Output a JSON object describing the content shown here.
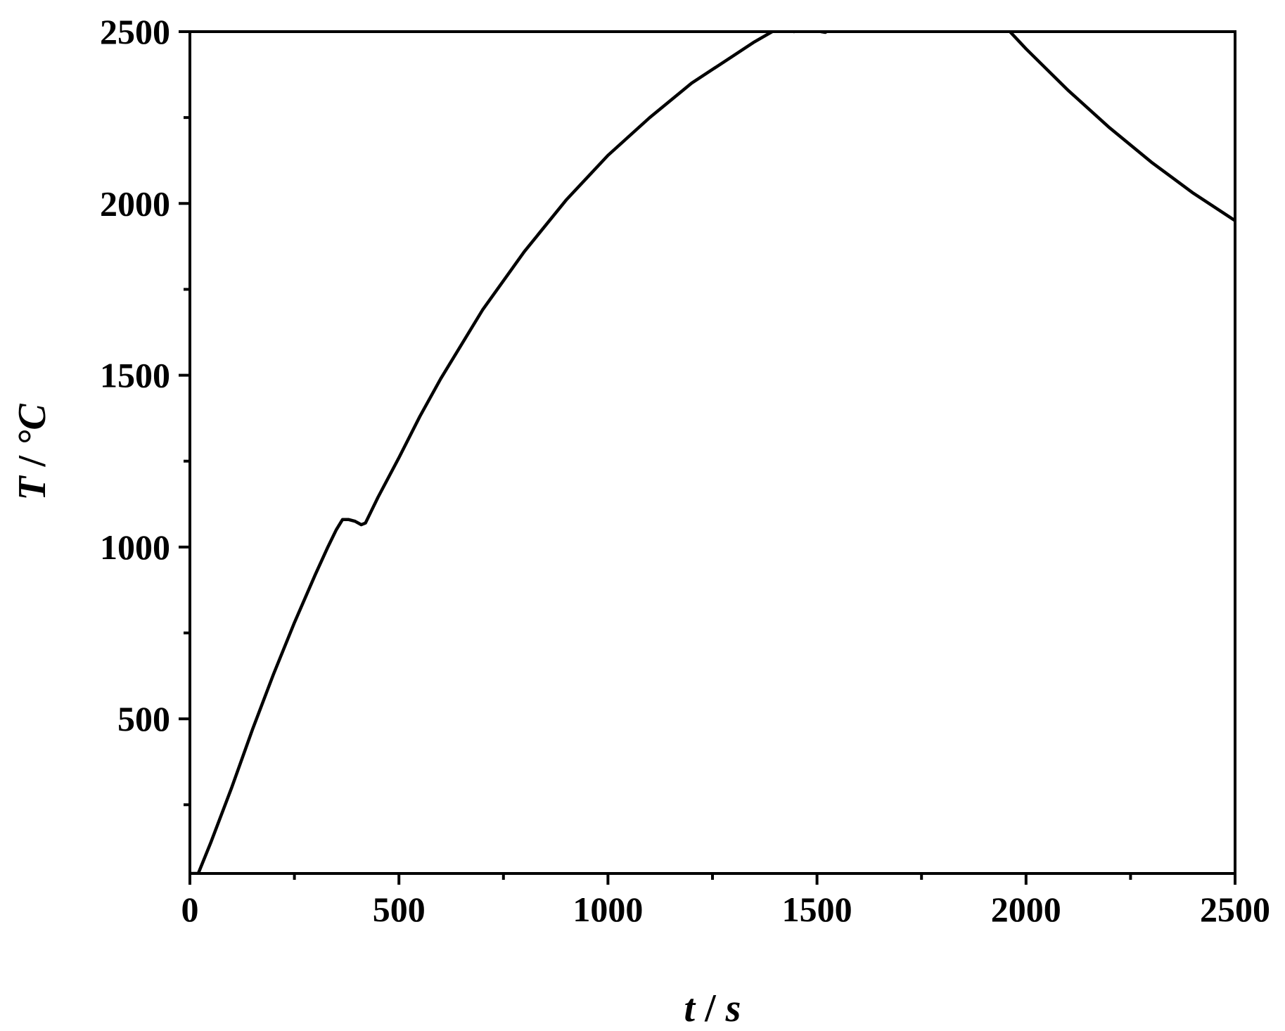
{
  "chart_data": {
    "type": "line",
    "title": "",
    "xlabel": {
      "var": "t",
      "unit": "s"
    },
    "ylabel": {
      "var": "T",
      "unit": "°C"
    },
    "xlim": [
      0,
      2500
    ],
    "ylim": [
      50,
      2500
    ],
    "x_ticks": [
      0,
      500,
      1000,
      1500,
      2000,
      2500
    ],
    "x_ticks_minor": [
      250,
      750,
      1250,
      1750,
      2250
    ],
    "y_ticks": [
      500,
      1000,
      1500,
      2000,
      2500
    ],
    "y_ticks_minor": [
      250,
      750,
      1250,
      1750,
      2250
    ],
    "grid": false,
    "legend": "none",
    "line_color": "#000000",
    "series": [
      {
        "x": [
          0,
          20,
          50,
          100,
          150,
          200,
          250,
          300,
          330,
          350,
          365,
          380,
          395,
          410,
          420,
          430,
          450,
          500,
          550,
          600,
          700,
          800,
          900,
          1000,
          1100,
          1200,
          1300,
          1350,
          1400,
          1420,
          1430,
          1445,
          1460,
          1475,
          1490,
          1500,
          1510,
          1520,
          1530,
          1550,
          1600,
          1650,
          1700,
          1730,
          1750,
          1780,
          1800,
          1810,
          1820,
          1850,
          1900,
          2000,
          2100,
          2200,
          2300,
          2400,
          2500
        ],
        "y": [
          50,
          50,
          140,
          300,
          470,
          630,
          780,
          920,
          1000,
          1050,
          1080,
          1080,
          1075,
          1065,
          1070,
          1095,
          1145,
          1260,
          1380,
          1490,
          1690,
          1860,
          2010,
          2140,
          2250,
          2350,
          2430,
          2470,
          2505,
          2520,
          2515,
          2500,
          2505,
          2515,
          2520,
          2510,
          2500,
          2498,
          2505,
          2525,
          2570,
          2610,
          2650,
          2670,
          2680,
          2685,
          2685,
          2685,
          2672,
          2640,
          2580,
          2450,
          2330,
          2220,
          2120,
          2030,
          1950
        ]
      }
    ]
  }
}
